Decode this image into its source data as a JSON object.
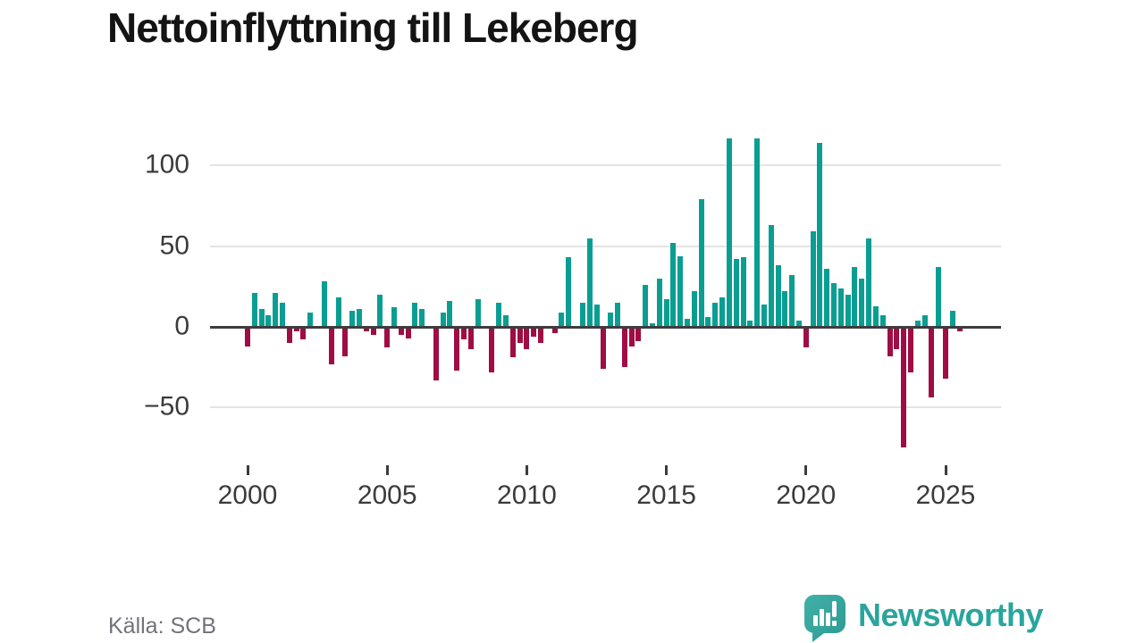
{
  "title": "Nettoinflyttning till Lekeberg",
  "source": "Källa: SCB",
  "branding": {
    "name": "Newsworthy",
    "icon": "newsworthy-speech-bubble-bar-chart-icon"
  },
  "colors": {
    "positive_bar": "#0a9e92",
    "negative_bar": "#9f0d44",
    "zero_line": "#3d3d3d",
    "gridline": "#e4e4e4",
    "axis_text": "#3b3b3b",
    "source_text": "#73727a",
    "brand_teal": "#2aa59d",
    "title_text": "#141414"
  },
  "chart_data": {
    "type": "bar",
    "title": "Nettoinflyttning till Lekeberg",
    "frequency": "quarterly",
    "start": {
      "year": 2000,
      "quarter": 1
    },
    "end": {
      "year": 2025,
      "quarter": 3
    },
    "y_ticks": [
      -50,
      0,
      50,
      100
    ],
    "x_ticks": [
      2000,
      2005,
      2010,
      2015,
      2020,
      2025
    ],
    "ylim": [
      -80,
      122
    ],
    "grid": "horizontal-only",
    "legend": "none",
    "values": [
      -12,
      21,
      11,
      7,
      21,
      15,
      -10,
      -3,
      -8,
      9,
      0,
      28,
      -23,
      18,
      -18,
      10,
      11,
      -3,
      -5,
      20,
      -13,
      12,
      -5,
      -7,
      15,
      11,
      0,
      -33,
      9,
      16,
      -27,
      -8,
      -14,
      17,
      0,
      -28,
      15,
      7,
      -19,
      -10,
      -14,
      -6,
      -10,
      0,
      -4,
      9,
      43,
      0,
      15,
      55,
      14,
      -26,
      9,
      15,
      -25,
      -12,
      -9,
      26,
      2,
      30,
      17,
      52,
      44,
      5,
      22,
      79,
      6,
      15,
      18,
      117,
      42,
      43,
      4,
      117,
      14,
      63,
      38,
      22,
      32,
      4,
      -13,
      59,
      114,
      36,
      27,
      24,
      20,
      37,
      30,
      55,
      13,
      7,
      -18,
      -14,
      -75,
      -28,
      4,
      7,
      -44,
      37,
      -32,
      10,
      -3
    ]
  }
}
